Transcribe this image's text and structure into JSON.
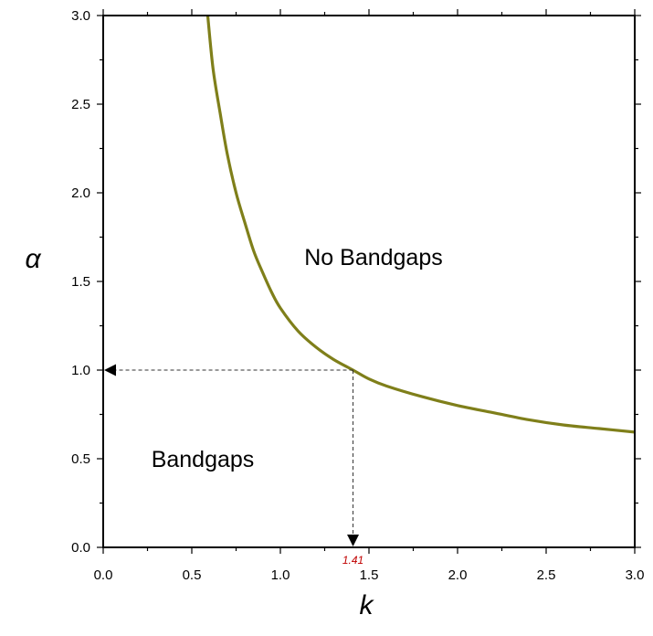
{
  "chart_data": {
    "type": "line",
    "title": "",
    "xlabel": "k",
    "ylabel": "α",
    "xlim": [
      0.0,
      3.0
    ],
    "ylim": [
      0.0,
      3.0
    ],
    "x_ticks": [
      "0.0",
      "0.5",
      "1.0",
      "1.5",
      "2.0",
      "2.5",
      "3.0"
    ],
    "y_ticks": [
      "0.0",
      "0.5",
      "1.0",
      "1.5",
      "2.0",
      "2.5",
      "3.0"
    ],
    "grid": false,
    "legend": "none",
    "series": [
      {
        "color": "#7f7f1a",
        "points": [
          [
            0.59,
            3.0
          ],
          [
            0.62,
            2.7
          ],
          [
            0.66,
            2.45
          ],
          [
            0.7,
            2.22
          ],
          [
            0.75,
            2.0
          ],
          [
            0.8,
            1.83
          ],
          [
            0.85,
            1.67
          ],
          [
            0.9,
            1.55
          ],
          [
            0.95,
            1.44
          ],
          [
            1.0,
            1.35
          ],
          [
            1.1,
            1.22
          ],
          [
            1.2,
            1.13
          ],
          [
            1.3,
            1.06
          ],
          [
            1.41,
            1.0
          ],
          [
            1.5,
            0.95
          ],
          [
            1.6,
            0.91
          ],
          [
            1.8,
            0.85
          ],
          [
            2.0,
            0.8
          ],
          [
            2.2,
            0.76
          ],
          [
            2.4,
            0.72
          ],
          [
            2.6,
            0.69
          ],
          [
            2.8,
            0.67
          ],
          [
            3.0,
            0.65
          ]
        ]
      }
    ],
    "annotations": {
      "region_upper": "No Bandgaps",
      "region_lower": "Bandgaps",
      "marker_x_label": "1.41",
      "marker_x": 1.41,
      "marker_y": 1.0,
      "marker_label_color": "#c00000"
    }
  }
}
